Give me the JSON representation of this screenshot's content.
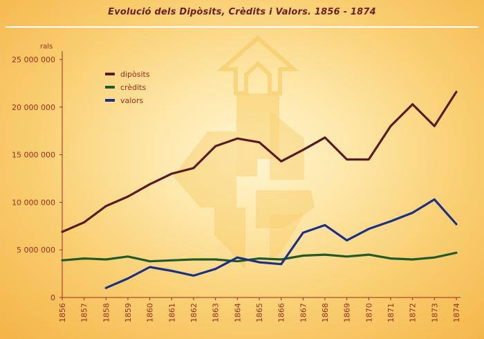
{
  "title": "Evolució dels Dipòsits, Crèdits i Valors. 1856 - 1874",
  "chart_data": {
    "type": "line",
    "title": "Evolució dels Dipòsits, Crèdits i Valors. 1856 - 1874",
    "ylabel": "rals",
    "xlabel": "",
    "x": [
      "1856",
      "1857",
      "1858",
      "1859",
      "1860",
      "1861",
      "1862",
      "1863",
      "1864",
      "1865",
      "1866",
      "1867",
      "1868",
      "1869",
      "1870",
      "1871",
      "1872",
      "1873",
      "1874"
    ],
    "ylim": [
      0,
      25000000
    ],
    "yticks": [
      0,
      5000000,
      10000000,
      15000000,
      20000000,
      25000000
    ],
    "ytick_labels": [
      "0",
      "5 000 000",
      "10 000 000",
      "15 000 000",
      "20 000 000",
      "25 000 000"
    ],
    "grid": false,
    "legend_position": "top-left",
    "series": [
      {
        "name": "dipòsits",
        "color": "#5a1a24",
        "values": [
          6900000,
          7900000,
          9600000,
          10600000,
          11900000,
          13000000,
          13600000,
          15900000,
          16700000,
          16300000,
          14300000,
          15500000,
          16800000,
          14500000,
          14500000,
          18000000,
          20300000,
          18000000,
          21600000
        ]
      },
      {
        "name": "crèdits",
        "color": "#1f5a2a",
        "values": [
          3900000,
          4100000,
          4000000,
          4300000,
          3800000,
          3900000,
          4000000,
          4000000,
          3800000,
          4100000,
          4000000,
          4400000,
          4500000,
          4300000,
          4500000,
          4100000,
          4000000,
          4200000,
          4700000
        ]
      },
      {
        "name": "valors",
        "color": "#1a2f86",
        "values": [
          null,
          null,
          1000000,
          2000000,
          3200000,
          2800000,
          2300000,
          3000000,
          4200000,
          3700000,
          3500000,
          6800000,
          7600000,
          6000000,
          7200000,
          8000000,
          8900000,
          10300000,
          7700000
        ]
      }
    ]
  }
}
